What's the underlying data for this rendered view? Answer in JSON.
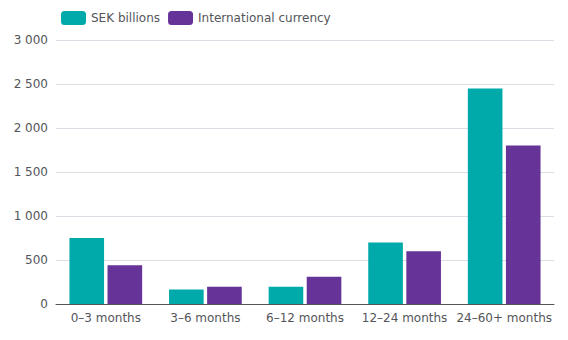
{
  "chart_data": {
    "type": "bar",
    "categories": [
      "0–3 months",
      "3–6 months",
      "6–12 months",
      "12–24 months",
      "24–60+ months"
    ],
    "series": [
      {
        "name": "SEK billions",
        "color": "#00AAAA",
        "values": [
          750,
          165,
          195,
          700,
          2450
        ]
      },
      {
        "name": "International currency",
        "color": "#663399",
        "values": [
          440,
          195,
          310,
          600,
          1800
        ]
      }
    ],
    "ylim": [
      0,
      3000
    ],
    "yticks": [
      0,
      500,
      {
        "value": 1000,
        "label": "1 000"
      },
      {
        "value": 1500,
        "label": "1 500"
      },
      {
        "value": 2000,
        "label": "2 000"
      },
      {
        "value": 2500,
        "label": "2 500"
      },
      {
        "value": 3000,
        "label": "3 000"
      }
    ],
    "grid": true,
    "legend": "upper left"
  }
}
